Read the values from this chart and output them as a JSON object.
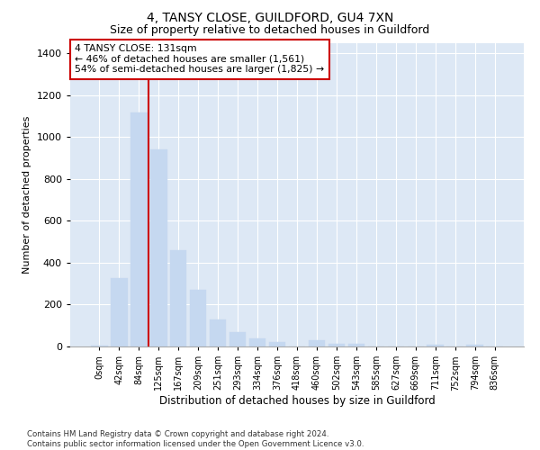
{
  "title": "4, TANSY CLOSE, GUILDFORD, GU4 7XN",
  "subtitle": "Size of property relative to detached houses in Guildford",
  "xlabel": "Distribution of detached houses by size in Guildford",
  "ylabel": "Number of detached properties",
  "categories": [
    "0sqm",
    "42sqm",
    "84sqm",
    "125sqm",
    "167sqm",
    "209sqm",
    "251sqm",
    "293sqm",
    "334sqm",
    "376sqm",
    "418sqm",
    "460sqm",
    "502sqm",
    "543sqm",
    "585sqm",
    "627sqm",
    "669sqm",
    "711sqm",
    "752sqm",
    "794sqm",
    "836sqm"
  ],
  "values": [
    5,
    325,
    1115,
    940,
    460,
    270,
    130,
    70,
    38,
    22,
    0,
    28,
    15,
    12,
    0,
    0,
    0,
    8,
    0,
    10,
    0
  ],
  "bar_color": "#c5d8f0",
  "bar_edge_color": "#c5d8f0",
  "background_color": "#dde8f5",
  "grid_color": "#ffffff",
  "vline_color": "#cc0000",
  "vline_pos": 2.5,
  "annotation_text": "4 TANSY CLOSE: 131sqm\n← 46% of detached houses are smaller (1,561)\n54% of semi-detached houses are larger (1,825) →",
  "annotation_box_facecolor": "#ffffff",
  "annotation_box_edgecolor": "#cc0000",
  "footer_text": "Contains HM Land Registry data © Crown copyright and database right 2024.\nContains public sector information licensed under the Open Government Licence v3.0.",
  "ylim": [
    0,
    1450
  ],
  "yticks": [
    0,
    200,
    400,
    600,
    800,
    1000,
    1200,
    1400
  ],
  "title_fontsize": 10,
  "subtitle_fontsize": 9
}
